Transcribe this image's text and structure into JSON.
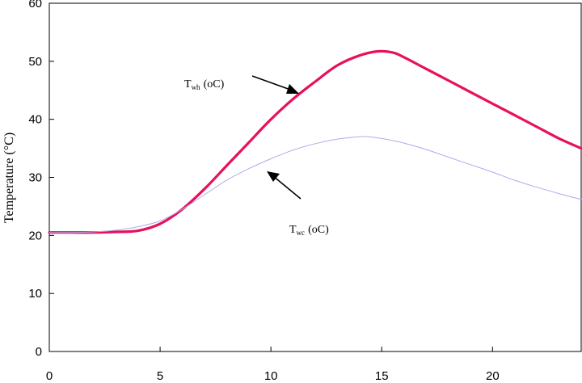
{
  "chart_data": {
    "type": "line",
    "title": "",
    "xlabel": "",
    "ylabel": "Temperature (°C)",
    "xlim": [
      0,
      24
    ],
    "ylim": [
      0,
      60
    ],
    "xticks": [
      0,
      5,
      10,
      15,
      20
    ],
    "yticks": [
      0,
      10,
      20,
      30,
      40,
      50,
      60
    ],
    "grid": false,
    "colors": {
      "twh": "#e8105a",
      "twc": "#a9aee8"
    },
    "series": [
      {
        "key": "twh",
        "x": [
          0,
          1,
          2,
          3,
          4,
          5,
          6,
          7,
          8,
          9,
          10,
          11,
          12,
          13,
          14,
          14.8,
          15.5,
          16,
          17,
          18,
          19,
          20,
          21,
          22,
          23,
          24
        ],
        "y": [
          20.5,
          20.5,
          20.5,
          20.6,
          20.8,
          22.0,
          24.5,
          28.0,
          32.0,
          36.0,
          40.0,
          43.5,
          46.5,
          49.3,
          51.0,
          51.7,
          51.5,
          50.7,
          48.7,
          46.7,
          44.7,
          42.7,
          40.7,
          38.7,
          36.7,
          35.0
        ]
      },
      {
        "key": "twc",
        "x": [
          0,
          1,
          2,
          3,
          4,
          5,
          6,
          7,
          8,
          9,
          10,
          11,
          12,
          13,
          14,
          14.4,
          15,
          16,
          17,
          18,
          19,
          20,
          21,
          22,
          23,
          24
        ],
        "y": [
          20.5,
          20.5,
          20.6,
          20.9,
          21.5,
          22.5,
          24.5,
          27.0,
          29.5,
          31.5,
          33.2,
          34.7,
          35.8,
          36.6,
          37.0,
          37.0,
          36.7,
          35.9,
          34.8,
          33.5,
          32.2,
          30.9,
          29.5,
          28.3,
          27.2,
          26.2
        ]
      }
    ],
    "annotations": [
      {
        "key": "twh",
        "main": "T",
        "sub": "wh",
        "rest": "(oC)"
      },
      {
        "key": "twc",
        "main": "T",
        "sub": "wc",
        "rest": "(oC)"
      }
    ]
  }
}
